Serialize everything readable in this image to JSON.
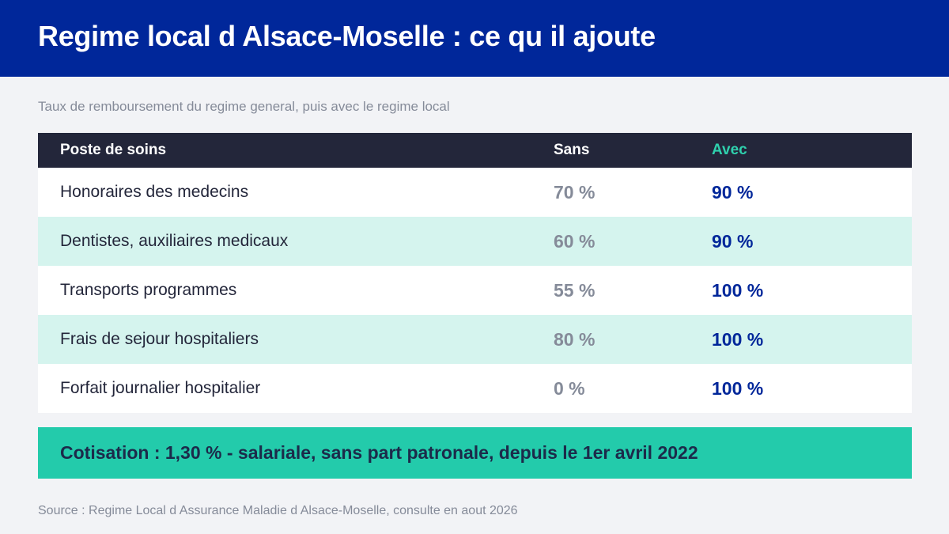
{
  "header": {
    "title": "Regime local d Alsace-Moselle : ce qu il ajoute"
  },
  "subtitle": "Taux de remboursement du regime general, puis avec le regime local",
  "table": {
    "columns": [
      "Poste de soins",
      "Sans",
      "Avec"
    ],
    "rows": [
      {
        "label": "Honoraires des medecins",
        "sans": "70 %",
        "avec": "90 %"
      },
      {
        "label": "Dentistes, auxiliaires medicaux",
        "sans": "60 %",
        "avec": "90 %"
      },
      {
        "label": "Transports programmes",
        "sans": "55 %",
        "avec": "100 %"
      },
      {
        "label": "Frais de sejour hospitaliers",
        "sans": "80 %",
        "avec": "100 %"
      },
      {
        "label": "Forfait journalier hospitalier",
        "sans": "0 %",
        "avec": "100 %"
      }
    ]
  },
  "banner": {
    "text": "Cotisation : 1,30 % - salariale, sans part patronale, depuis le 1er avril 2022"
  },
  "source": "Source : Regime Local d Assurance Maladie d Alsace-Moselle, consulte en aout 2026",
  "colors": {
    "header_bg": "#00279a",
    "table_header_bg": "#23263a",
    "accent_green": "#2fd0ad",
    "row_alt_bg": "#d5f4ee",
    "banner_bg": "#23cbab",
    "value_blue": "#00279a",
    "value_grey": "#858b99"
  }
}
